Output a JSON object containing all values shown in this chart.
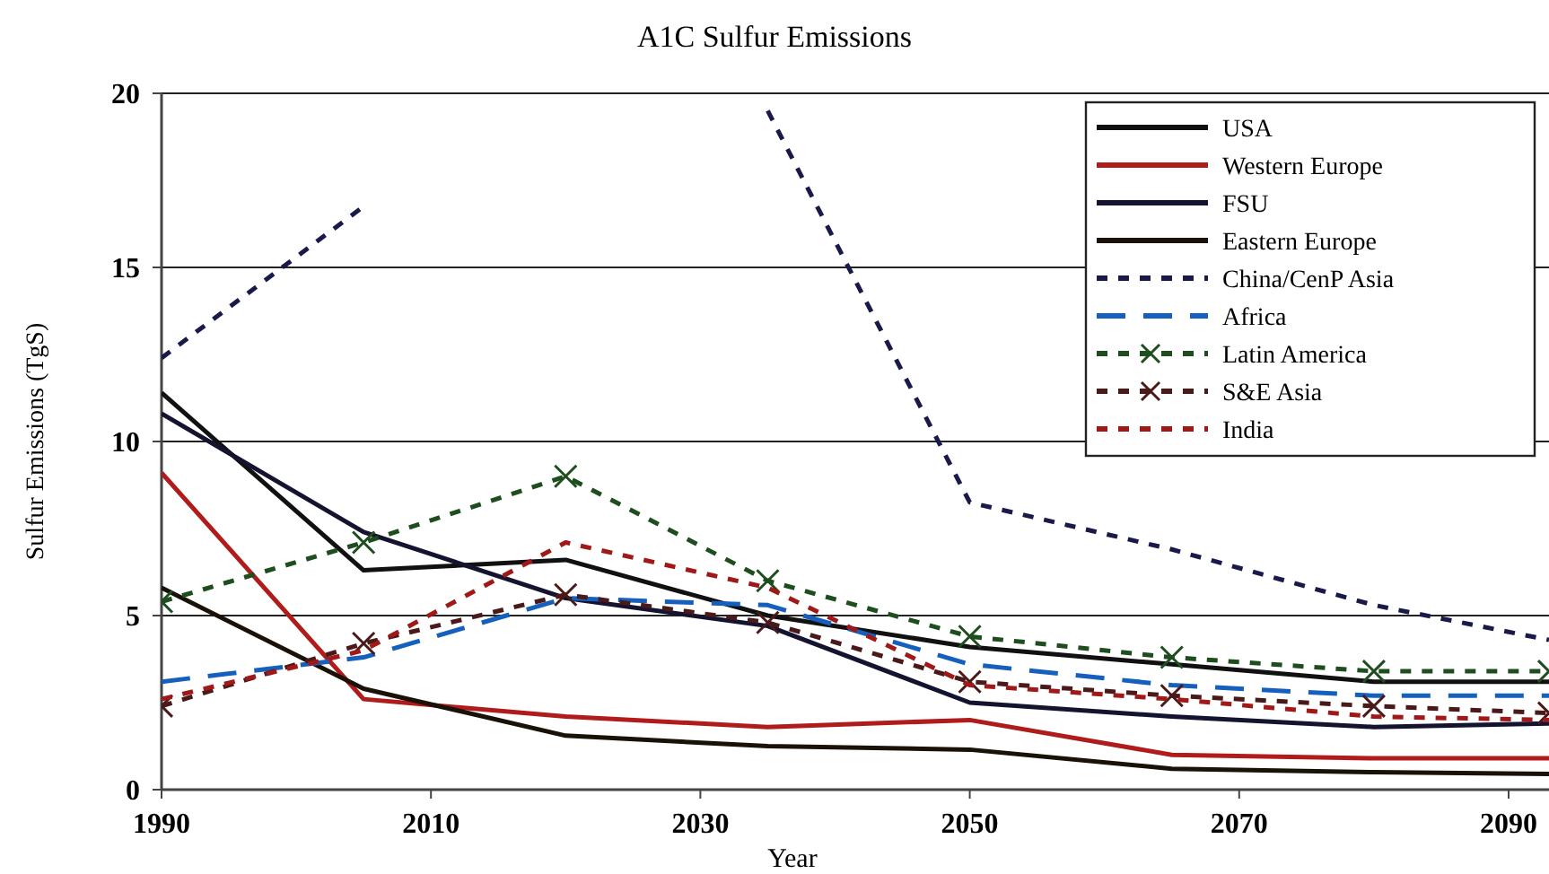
{
  "chart_data": {
    "type": "line",
    "title": "A1C Sulfur Emissions",
    "xlabel": "Year",
    "ylabel": "Sulfur Emissions (TgS)",
    "x": [
      1990,
      2005,
      2020,
      2035,
      2050,
      2065,
      2080,
      2093
    ],
    "xlim": [
      1990,
      2093
    ],
    "xticks": [
      1990,
      2010,
      2030,
      2050,
      2070,
      2090
    ],
    "ylim": [
      0,
      20
    ],
    "yticks": [
      0,
      5,
      10,
      15,
      20
    ],
    "grid": "y",
    "legend": "top right",
    "series": [
      {
        "name": "USA",
        "color": "#111111",
        "line_style": "solid",
        "marker": "none",
        "values": [
          11.4,
          6.3,
          6.6,
          5.0,
          4.1,
          3.6,
          3.1,
          3.1
        ]
      },
      {
        "name": "Western Europe",
        "color": "#b01c1c",
        "line_style": "solid",
        "marker": "none",
        "values": [
          9.1,
          2.6,
          2.1,
          1.8,
          2.0,
          1.0,
          0.9,
          0.9
        ]
      },
      {
        "name": "FSU",
        "color": "#141430",
        "line_style": "solid",
        "marker": "none",
        "values": [
          10.8,
          7.4,
          5.5,
          4.7,
          2.5,
          2.1,
          1.8,
          1.9
        ]
      },
      {
        "name": "Eastern Europe",
        "color": "#1a1208",
        "line_style": "solid",
        "marker": "none",
        "values": [
          5.8,
          2.9,
          1.55,
          1.25,
          1.15,
          0.6,
          0.5,
          0.45
        ]
      },
      {
        "name": "China/CenP Asia",
        "color": "#1a1a4a",
        "line_style": "dotted",
        "marker": "none",
        "values": [
          12.4,
          16.75,
          null,
          19.5,
          8.25,
          6.9,
          5.3,
          4.3
        ]
      },
      {
        "name": "Africa",
        "color": "#1560bd",
        "line_style": "dashed",
        "marker": "none",
        "values": [
          3.1,
          3.8,
          5.5,
          5.3,
          3.6,
          3.0,
          2.7,
          2.7
        ]
      },
      {
        "name": "Latin America",
        "color": "#1e4d1e",
        "line_style": "dotted",
        "marker": "cross",
        "values": [
          5.4,
          7.1,
          9.0,
          6.0,
          4.4,
          3.8,
          3.4,
          3.4
        ]
      },
      {
        "name": "S&E Asia",
        "color": "#4a1a1a",
        "line_style": "dotted",
        "marker": "cross",
        "values": [
          2.4,
          4.2,
          5.6,
          4.8,
          3.1,
          2.7,
          2.4,
          2.2
        ]
      },
      {
        "name": "India",
        "color": "#a01818",
        "line_style": "dotted",
        "marker": "none",
        "values": [
          2.6,
          4.0,
          7.1,
          5.8,
          3.0,
          2.6,
          2.1,
          2.0
        ]
      }
    ]
  }
}
